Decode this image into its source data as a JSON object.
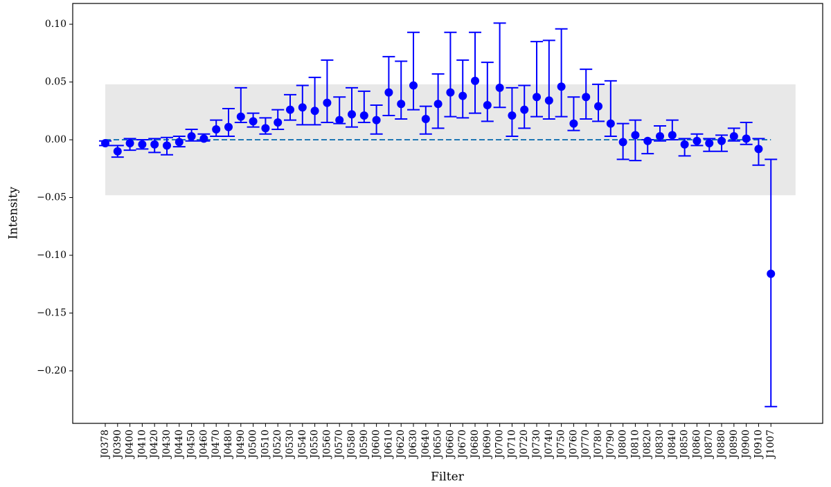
{
  "chart_data": {
    "type": "errorbar",
    "xlabel": "Filter",
    "ylabel": "Intensity",
    "categories": [
      "J0378",
      "J0390",
      "J0400",
      "J0410",
      "J0420",
      "J0430",
      "J0440",
      "J0450",
      "J0460",
      "J0470",
      "J0480",
      "J0490",
      "J0500",
      "J0510",
      "J0520",
      "J0530",
      "J0540",
      "J0550",
      "J0560",
      "J0570",
      "J0580",
      "J0590",
      "J0600",
      "J0610",
      "J0620",
      "J0630",
      "J0640",
      "J0650",
      "J0660",
      "J0670",
      "J0680",
      "J0690",
      "J0700",
      "J0710",
      "J0720",
      "J0730",
      "J0740",
      "J0750",
      "J0760",
      "J0770",
      "J0780",
      "J0790",
      "J0800",
      "J0810",
      "J0820",
      "J0830",
      "J0840",
      "J0850",
      "J0860",
      "J0870",
      "J0880",
      "J0890",
      "J0900",
      "J0910",
      "J1007"
    ],
    "values": [
      -0.003,
      -0.01,
      -0.003,
      -0.004,
      -0.004,
      -0.005,
      -0.002,
      0.003,
      0.001,
      0.009,
      0.011,
      0.02,
      0.016,
      0.01,
      0.015,
      0.026,
      0.028,
      0.025,
      0.032,
      0.017,
      0.022,
      0.021,
      0.017,
      0.041,
      0.031,
      0.047,
      0.018,
      0.031,
      0.041,
      0.038,
      0.051,
      0.03,
      0.045,
      0.021,
      0.026,
      0.037,
      0.034,
      0.046,
      0.014,
      0.037,
      0.029,
      0.014,
      -0.002,
      0.004,
      -0.001,
      0.003,
      0.004,
      -0.004,
      -0.001,
      -0.003,
      -0.001,
      0.003,
      0.001,
      -0.008,
      -0.116
    ],
    "lower": [
      -0.005,
      -0.015,
      -0.009,
      -0.008,
      -0.011,
      -0.013,
      -0.006,
      -0.001,
      -0.001,
      0.003,
      0.003,
      0.015,
      0.011,
      0.005,
      0.009,
      0.017,
      0.013,
      0.013,
      0.015,
      0.014,
      0.011,
      0.015,
      0.005,
      0.021,
      0.018,
      0.026,
      0.005,
      0.01,
      0.02,
      0.019,
      0.023,
      0.016,
      0.028,
      0.003,
      0.01,
      0.02,
      0.018,
      0.02,
      0.008,
      0.018,
      0.016,
      0.003,
      -0.017,
      -0.018,
      -0.012,
      -0.001,
      0.0,
      -0.014,
      -0.005,
      -0.01,
      -0.01,
      -0.001,
      -0.004,
      -0.022,
      -0.231
    ],
    "upper": [
      -0.001,
      -0.005,
      0.001,
      0.0,
      0.001,
      0.002,
      0.003,
      0.009,
      0.005,
      0.017,
      0.027,
      0.045,
      0.023,
      0.019,
      0.026,
      0.039,
      0.047,
      0.054,
      0.069,
      0.037,
      0.045,
      0.042,
      0.03,
      0.072,
      0.068,
      0.093,
      0.029,
      0.057,
      0.093,
      0.069,
      0.093,
      0.067,
      0.101,
      0.045,
      0.047,
      0.085,
      0.086,
      0.096,
      0.037,
      0.061,
      0.048,
      0.051,
      0.014,
      0.017,
      0.0,
      0.012,
      0.017,
      0.001,
      0.005,
      0.001,
      0.004,
      0.01,
      0.015,
      0.001,
      -0.017
    ],
    "color": "#0000ff",
    "band": {
      "ylim": [
        -0.048,
        0.048
      ],
      "xlim": [
        0,
        56
      ],
      "color": "#e8e8e8"
    },
    "reference_line": {
      "y": 0,
      "xlim": [
        0,
        54
      ],
      "color": "#1f77b4"
    },
    "xlim": [
      -2.64,
      58.2
    ],
    "ylim": [
      -0.2455,
      0.118
    ],
    "yticks": [
      {
        "value": 0.1,
        "label": "0.10"
      },
      {
        "value": 0.05,
        "label": "0.05"
      },
      {
        "value": 0,
        "label": "0.00"
      },
      {
        "value": -0.05,
        "label": "−0.05"
      },
      {
        "value": -0.1,
        "label": "−0.10"
      },
      {
        "value": -0.15,
        "label": "−0.15"
      },
      {
        "value": -0.2,
        "label": "−0.20"
      }
    ]
  }
}
